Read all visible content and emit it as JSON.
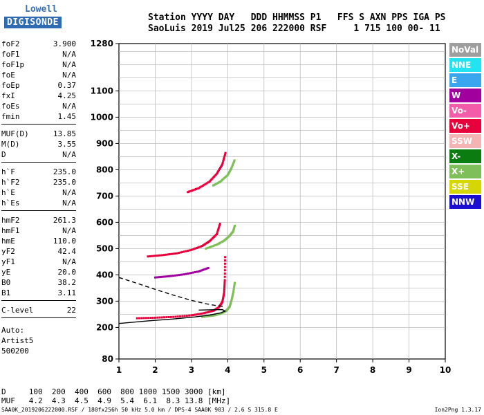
{
  "logo": {
    "top": "Lowell",
    "bottom": "DIGISONDE"
  },
  "header": {
    "line1": "Station YYYY DAY   DDD HHMMSS P1   FFS S AXN PPS IGA PS",
    "line2": "SaoLuis 2019 Jul25 206 222000 RSF     1 715 100 00- 11"
  },
  "params": {
    "group1": [
      {
        "name": "foF2",
        "value": "3.900"
      },
      {
        "name": "foF1",
        "value": "N/A"
      },
      {
        "name": "foF1p",
        "value": "N/A"
      },
      {
        "name": "foE",
        "value": "N/A"
      },
      {
        "name": "foEp",
        "value": "0.37"
      },
      {
        "name": "fxI",
        "value": "4.25"
      },
      {
        "name": "foEs",
        "value": "N/A"
      },
      {
        "name": "fmin",
        "value": "1.45"
      }
    ],
    "group2": [
      {
        "name": "MUF(D)",
        "value": "13.85"
      },
      {
        "name": "M(D)",
        "value": "3.55"
      },
      {
        "name": "D",
        "value": "N/A"
      }
    ],
    "group3": [
      {
        "name": "h`F",
        "value": "235.0"
      },
      {
        "name": "h`F2",
        "value": "235.0"
      },
      {
        "name": "h`E",
        "value": "N/A"
      },
      {
        "name": "h`Es",
        "value": "N/A"
      }
    ],
    "group4": [
      {
        "name": "hmF2",
        "value": "261.3"
      },
      {
        "name": "hmF1",
        "value": "N/A"
      },
      {
        "name": "hmE",
        "value": "110.0"
      },
      {
        "name": "yF2",
        "value": "42.4"
      },
      {
        "name": "yF1",
        "value": "N/A"
      },
      {
        "name": "yE",
        "value": "20.0"
      },
      {
        "name": "B0",
        "value": "38.2"
      },
      {
        "name": "B1",
        "value": "3.11"
      }
    ],
    "group5": [
      {
        "name": "C-level",
        "value": "22"
      }
    ],
    "auto": [
      "Auto:",
      "Artist5",
      "500200"
    ]
  },
  "legend": [
    {
      "label": "NoVal",
      "color": "#9e9e9e"
    },
    {
      "label": "NNE",
      "color": "#22e3f0"
    },
    {
      "label": "E",
      "color": "#3aa6ef"
    },
    {
      "label": "W",
      "color": "#a1009f"
    },
    {
      "label": "Vo-",
      "color": "#f25ca8"
    },
    {
      "label": "Vo+",
      "color": "#e8003c"
    },
    {
      "label": "SSW",
      "color": "#f5b4b4"
    },
    {
      "label": "X-",
      "color": "#0b7d10"
    },
    {
      "label": "X+",
      "color": "#7fbf5a"
    },
    {
      "label": "SSE",
      "color": "#d6d600"
    },
    {
      "label": "NNW",
      "color": "#1a0fd0"
    }
  ],
  "dmuf": {
    "line1": "D     100  200  400  600  800 1000 1500 3000 [km]",
    "line2": "MUF   4.2  4.3  4.5  4.9  5.4  6.1  8.3 13.8 [MHz]"
  },
  "footer": {
    "left": "SAA0K_2019206222000.RSF / 180fx256h 50 kHz 5.0 km / DPS-4 SAA0K 903 / 2.6 S 315.8 E",
    "right": "Ion2Png 1.3.17"
  },
  "chart_data": {
    "type": "scatter",
    "title": "",
    "xlabel": "",
    "ylabel": "",
    "xlim": [
      1,
      10
    ],
    "ylim": [
      80,
      1280
    ],
    "x_ticks": [
      1,
      2,
      3,
      4,
      5,
      6,
      7,
      8,
      9,
      10
    ],
    "y_ticks": [
      80,
      200,
      300,
      400,
      500,
      600,
      700,
      800,
      900,
      1000,
      1100,
      1280
    ],
    "y_grid": [
      200,
      250,
      300,
      350,
      400,
      450,
      500,
      550,
      600,
      650,
      700,
      750,
      800,
      850,
      900,
      950,
      1000,
      1050,
      1100,
      1150,
      1200,
      1250
    ],
    "grid": true,
    "traces": [
      {
        "name": "O-trace F2 (1st hop)",
        "color": "#e8003c",
        "x": [
          1.5,
          2.0,
          2.5,
          3.0,
          3.3,
          3.6,
          3.75,
          3.85,
          3.9,
          3.92,
          3.93
        ],
        "y": [
          235,
          237,
          240,
          246,
          253,
          263,
          276,
          296,
          330,
          380,
          480
        ]
      },
      {
        "name": "X-trace F2 (1st hop)",
        "color": "#7fbf5a",
        "x": [
          3.3,
          3.6,
          3.8,
          3.95,
          4.05,
          4.1,
          4.15,
          4.2
        ],
        "y": [
          240,
          245,
          252,
          262,
          278,
          300,
          330,
          375
        ]
      },
      {
        "name": "O-trace F2 (2nd hop)",
        "color": "#e8003c",
        "x": [
          1.8,
          2.2,
          2.6,
          3.0,
          3.3,
          3.5,
          3.7,
          3.8
        ],
        "y": [
          470,
          475,
          482,
          495,
          510,
          528,
          555,
          600
        ]
      },
      {
        "name": "X-trace F2 (2nd hop)",
        "color": "#7fbf5a",
        "x": [
          3.4,
          3.7,
          3.9,
          4.05,
          4.15,
          4.2
        ],
        "y": [
          500,
          515,
          530,
          548,
          565,
          590
        ]
      },
      {
        "name": "O-trace F2 (3rd hop)",
        "color": "#e8003c",
        "x": [
          2.9,
          3.2,
          3.5,
          3.7,
          3.85,
          3.95
        ],
        "y": [
          715,
          730,
          755,
          785,
          820,
          870
        ]
      },
      {
        "name": "X-trace F2 (3rd hop)",
        "color": "#7fbf5a",
        "x": [
          3.6,
          3.8,
          4.0,
          4.1,
          4.2
        ],
        "y": [
          740,
          755,
          780,
          805,
          840
        ]
      },
      {
        "name": "W upper trace",
        "color": "#a1009f",
        "x": [
          2.0,
          2.4,
          2.8,
          3.2,
          3.5
        ],
        "y": [
          390,
          395,
          402,
          413,
          428
        ]
      }
    ],
    "profile_solid": {
      "x": [
        1.0,
        1.8,
        2.5,
        3.1,
        3.5,
        3.8,
        3.93,
        3.85,
        3.5,
        3.2
      ],
      "y": [
        215,
        225,
        232,
        240,
        247,
        255,
        262,
        268,
        267,
        266
      ]
    },
    "profile_dashed": {
      "x": [
        1.0,
        1.5,
        2.0,
        2.5,
        3.0,
        3.4,
        3.7,
        3.93
      ],
      "y": [
        390,
        368,
        345,
        323,
        303,
        290,
        283,
        279
      ]
    }
  }
}
